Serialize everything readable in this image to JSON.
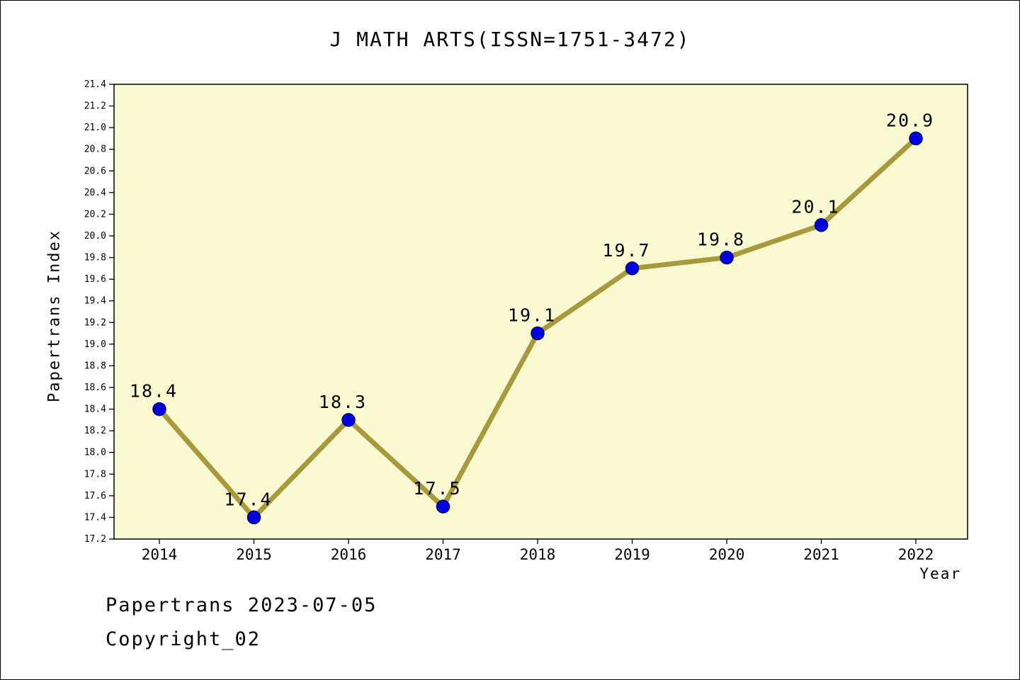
{
  "page": {
    "footer_line1": "Papertrans 2023-07-05",
    "footer_line2": "Copyright_02"
  },
  "chart_data": {
    "type": "line",
    "title": "J MATH ARTS(ISSN=1751-3472)",
    "xlabel": "Year",
    "ylabel": "Papertrans Index",
    "categories": [
      "2014",
      "2015",
      "2016",
      "2017",
      "2018",
      "2019",
      "2020",
      "2021",
      "2022"
    ],
    "values": [
      18.4,
      17.4,
      18.3,
      17.5,
      19.1,
      19.7,
      19.8,
      20.1,
      20.9
    ],
    "point_labels": [
      "18.4",
      "17.4",
      "18.3",
      "17.5",
      "19.1",
      "19.7",
      "19.8",
      "20.1",
      "20.9"
    ],
    "ylim": [
      17.2,
      21.4
    ],
    "ytick_step": 0.2,
    "grid": false,
    "legend_position": "none",
    "colors": {
      "page_background": "#FFFFFF",
      "plot_background": "#FAFAD2",
      "line": "#A89A3C",
      "marker_fill": "#0000DC",
      "marker_edge": "#00008B",
      "axis": "#000000",
      "text": "#000000"
    }
  }
}
